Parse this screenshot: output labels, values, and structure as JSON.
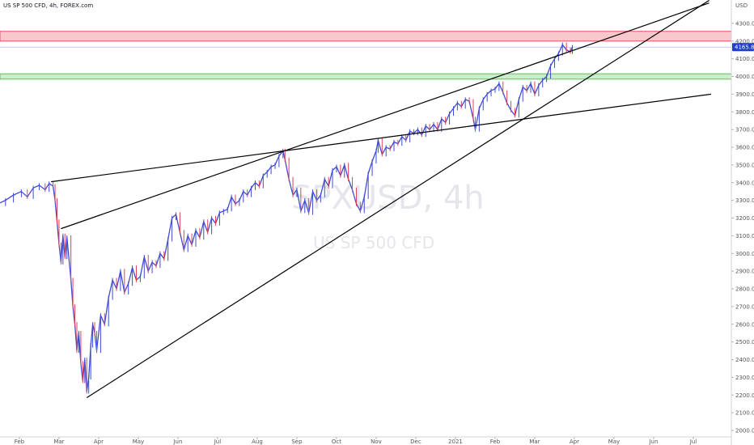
{
  "header": {
    "title": "US SP 500 CFD, 4h, FOREX.com",
    "currency": "USD"
  },
  "watermark": {
    "symbol": "SPXUSD, 4h",
    "description": "US SP 500 CFD"
  },
  "colors": {
    "candle": "#3f4bd1",
    "candle_down": "#e0405a",
    "resistance_zone_fill": "#f9c8cc",
    "resistance_zone_border": "#e25560",
    "support_zone_fill": "#cdeccd",
    "support_zone_border": "#5fbf5f",
    "trendline": "#000000",
    "price_tag": "#1e40c8",
    "last_price_line": "#c7c9f0"
  },
  "chart_data": {
    "type": "line",
    "symbol": "US SP 500 CFD",
    "interval": "4h",
    "source": "FOREX.com",
    "last_price": "4165.8",
    "x_ticks": [
      "Feb",
      "Mar",
      "Apr",
      "May",
      "Jun",
      "Jul",
      "Aug",
      "Sep",
      "Oct",
      "Nov",
      "Dec",
      "2021",
      "Feb",
      "Mar",
      "Apr",
      "May",
      "Jun",
      "Jul"
    ],
    "y_ticks": [
      "4300.0",
      "4200.0",
      "4100.0",
      "4000.0",
      "3900.0",
      "3800.0",
      "3700.0",
      "3600.0",
      "3500.0",
      "3400.0",
      "3300.0",
      "3200.0",
      "3100.0",
      "3000.0",
      "2900.0",
      "2800.0",
      "2700.0",
      "2600.0",
      "2500.0",
      "2400.0",
      "2300.0",
      "2200.0",
      "2100.0",
      "2000.0"
    ],
    "ylim": [
      1990,
      4420
    ],
    "x_unit": "months since Jan 15 2020",
    "series": [
      {
        "values": [
          [
            0.0,
            3280
          ],
          [
            0.2,
            3300
          ],
          [
            0.4,
            3330
          ],
          [
            0.6,
            3350
          ],
          [
            0.75,
            3320
          ],
          [
            0.9,
            3370
          ],
          [
            1.05,
            3385
          ],
          [
            1.2,
            3360
          ],
          [
            1.3,
            3395
          ],
          [
            1.4,
            3380
          ],
          [
            1.45,
            3300
          ],
          [
            1.5,
            3180
          ],
          [
            1.55,
            3050
          ],
          [
            1.6,
            2950
          ],
          [
            1.65,
            3100
          ],
          [
            1.7,
            2980
          ],
          [
            1.75,
            3090
          ],
          [
            1.85,
            2850
          ],
          [
            1.9,
            2700
          ],
          [
            1.95,
            2600
          ],
          [
            2.0,
            2450
          ],
          [
            2.05,
            2550
          ],
          [
            2.1,
            2380
          ],
          [
            2.15,
            2280
          ],
          [
            2.2,
            2400
          ],
          [
            2.25,
            2220
          ],
          [
            2.3,
            2300
          ],
          [
            2.35,
            2480
          ],
          [
            2.4,
            2600
          ],
          [
            2.45,
            2550
          ],
          [
            2.5,
            2450
          ],
          [
            2.6,
            2650
          ],
          [
            2.7,
            2600
          ],
          [
            2.8,
            2750
          ],
          [
            2.9,
            2850
          ],
          [
            3.0,
            2800
          ],
          [
            3.1,
            2900
          ],
          [
            3.2,
            2780
          ],
          [
            3.3,
            2830
          ],
          [
            3.4,
            2920
          ],
          [
            3.5,
            2850
          ],
          [
            3.6,
            2870
          ],
          [
            3.7,
            2980
          ],
          [
            3.8,
            2900
          ],
          [
            3.9,
            2950
          ],
          [
            4.0,
            2930
          ],
          [
            4.1,
            3000
          ],
          [
            4.2,
            2970
          ],
          [
            4.3,
            3080
          ],
          [
            4.4,
            3200
          ],
          [
            4.5,
            3220
          ],
          [
            4.6,
            3120
          ],
          [
            4.7,
            3020
          ],
          [
            4.8,
            3100
          ],
          [
            4.9,
            3050
          ],
          [
            5.0,
            3130
          ],
          [
            5.1,
            3090
          ],
          [
            5.2,
            3180
          ],
          [
            5.3,
            3120
          ],
          [
            5.4,
            3200
          ],
          [
            5.5,
            3170
          ],
          [
            5.6,
            3230
          ],
          [
            5.7,
            3240
          ],
          [
            5.8,
            3250
          ],
          [
            5.9,
            3320
          ],
          [
            6.0,
            3280
          ],
          [
            6.1,
            3300
          ],
          [
            6.2,
            3350
          ],
          [
            6.3,
            3330
          ],
          [
            6.4,
            3370
          ],
          [
            6.5,
            3400
          ],
          [
            6.6,
            3380
          ],
          [
            6.7,
            3440
          ],
          [
            6.8,
            3460
          ],
          [
            6.9,
            3490
          ],
          [
            7.0,
            3500
          ],
          [
            7.1,
            3550
          ],
          [
            7.2,
            3580
          ],
          [
            7.25,
            3530
          ],
          [
            7.35,
            3420
          ],
          [
            7.45,
            3330
          ],
          [
            7.55,
            3360
          ],
          [
            7.65,
            3240
          ],
          [
            7.75,
            3300
          ],
          [
            7.85,
            3230
          ],
          [
            7.95,
            3350
          ],
          [
            8.05,
            3300
          ],
          [
            8.15,
            3330
          ],
          [
            8.25,
            3420
          ],
          [
            8.35,
            3380
          ],
          [
            8.45,
            3470
          ],
          [
            8.55,
            3490
          ],
          [
            8.65,
            3440
          ],
          [
            8.75,
            3500
          ],
          [
            8.85,
            3420
          ],
          [
            8.95,
            3360
          ],
          [
            9.05,
            3280
          ],
          [
            9.15,
            3240
          ],
          [
            9.25,
            3320
          ],
          [
            9.35,
            3450
          ],
          [
            9.45,
            3520
          ],
          [
            9.55,
            3580
          ],
          [
            9.6,
            3640
          ],
          [
            9.7,
            3560
          ],
          [
            9.8,
            3600
          ],
          [
            9.9,
            3590
          ],
          [
            10.0,
            3630
          ],
          [
            10.1,
            3620
          ],
          [
            10.2,
            3660
          ],
          [
            10.3,
            3640
          ],
          [
            10.4,
            3690
          ],
          [
            10.5,
            3680
          ],
          [
            10.6,
            3700
          ],
          [
            10.7,
            3670
          ],
          [
            10.8,
            3720
          ],
          [
            10.9,
            3700
          ],
          [
            11.0,
            3730
          ],
          [
            11.1,
            3700
          ],
          [
            11.2,
            3760
          ],
          [
            11.3,
            3740
          ],
          [
            11.4,
            3790
          ],
          [
            11.5,
            3820
          ],
          [
            11.6,
            3850
          ],
          [
            11.7,
            3830
          ],
          [
            11.8,
            3870
          ],
          [
            11.9,
            3860
          ],
          [
            12.0,
            3760
          ],
          [
            12.05,
            3700
          ],
          [
            12.15,
            3820
          ],
          [
            12.25,
            3870
          ],
          [
            12.35,
            3900
          ],
          [
            12.45,
            3920
          ],
          [
            12.55,
            3930
          ],
          [
            12.65,
            3960
          ],
          [
            12.75,
            3910
          ],
          [
            12.85,
            3850
          ],
          [
            12.95,
            3810
          ],
          [
            13.05,
            3780
          ],
          [
            13.15,
            3870
          ],
          [
            13.25,
            3940
          ],
          [
            13.35,
            3920
          ],
          [
            13.45,
            3960
          ],
          [
            13.55,
            3900
          ],
          [
            13.65,
            3950
          ],
          [
            13.75,
            3980
          ],
          [
            13.85,
            4000
          ],
          [
            13.95,
            4060
          ],
          [
            14.05,
            4100
          ],
          [
            14.15,
            4130
          ],
          [
            14.25,
            4180
          ],
          [
            14.35,
            4150
          ],
          [
            14.45,
            4140
          ],
          [
            14.5,
            4166
          ]
        ]
      }
    ],
    "zones": [
      {
        "kind": "resistance",
        "from": 4200,
        "to": 4255
      },
      {
        "kind": "support",
        "from": 3985,
        "to": 4015
      }
    ],
    "trendlines": [
      {
        "from": [
          1.35,
          3405
        ],
        "to": [
          18.0,
          3900
        ]
      },
      {
        "from": [
          1.6,
          3140
        ],
        "to": [
          17.95,
          4415
        ]
      },
      {
        "from": [
          2.25,
          2185
        ],
        "to": [
          17.95,
          4430
        ]
      }
    ],
    "last_price_line": 4165.8
  }
}
